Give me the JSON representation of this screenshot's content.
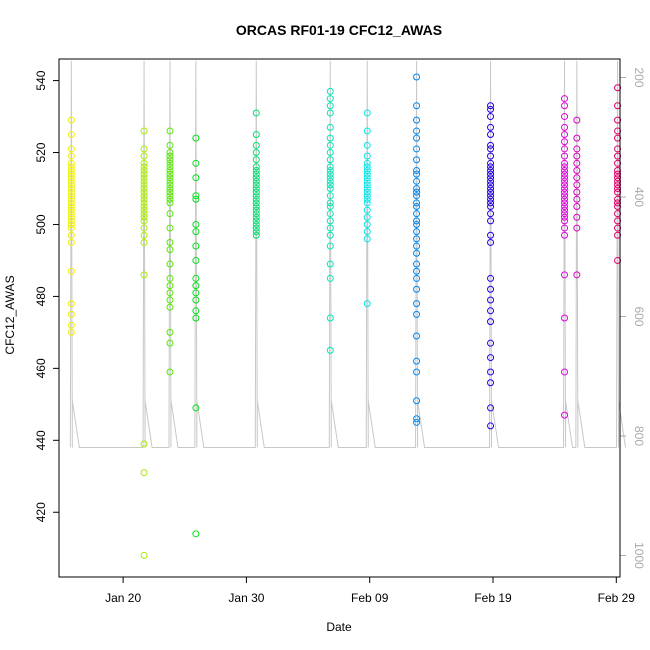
{
  "chart_data": {
    "type": "scatter",
    "title": "ORCAS RF01-19 CFC12_AWAS",
    "xlabel": "Date",
    "ylabel": "CFC12_AWAS",
    "x_unit": "day of 2016",
    "xlim": [
      14.8,
      60.3
    ],
    "ylim": [
      402,
      546
    ],
    "x_ticks": [
      {
        "value": 20,
        "label": "Jan 20"
      },
      {
        "value": 30,
        "label": "Jan 30"
      },
      {
        "value": 40,
        "label": "Feb 09"
      },
      {
        "value": 50,
        "label": "Feb 19"
      },
      {
        "value": 60,
        "label": "Feb 29"
      }
    ],
    "y_ticks": [
      420,
      440,
      460,
      480,
      500,
      520,
      540
    ],
    "right_axis": {
      "label": "",
      "ticks": [
        200,
        400,
        600,
        800,
        1000
      ],
      "lim": [
        1036,
        169
      ],
      "color": "#aaaaaa"
    },
    "flights": [
      {
        "x": 15.8,
        "color": "#f0f000",
        "values": [
          529,
          525,
          521,
          519,
          517,
          516,
          515,
          514,
          513,
          512,
          511,
          510,
          509,
          508,
          507,
          506,
          505,
          504,
          503,
          502,
          501,
          500,
          499,
          497,
          495,
          487,
          478,
          475,
          472,
          470
        ]
      },
      {
        "x": 21.7,
        "color": "#a8ec00",
        "values": [
          526,
          521,
          519,
          517,
          516,
          515,
          514,
          513,
          512,
          511,
          510,
          509,
          508,
          507,
          506,
          505,
          504,
          503,
          502,
          501,
          499,
          497,
          495,
          486,
          439,
          431,
          408
        ]
      },
      {
        "x": 23.8,
        "color": "#55e800",
        "values": [
          526,
          522,
          520,
          519,
          518,
          517,
          516,
          515,
          514,
          513,
          512,
          511,
          510,
          509,
          508,
          507,
          506,
          503,
          499,
          495,
          493,
          489,
          485,
          483,
          481,
          479,
          477,
          470,
          467,
          459
        ]
      },
      {
        "x": 25.9,
        "color": "#00e018",
        "values": [
          524,
          517,
          513,
          508,
          507,
          500,
          498,
          494,
          490,
          485,
          483,
          481,
          479,
          476,
          474,
          449,
          414
        ]
      },
      {
        "x": 30.8,
        "color": "#00e070",
        "values": [
          531,
          525,
          522,
          520,
          518,
          516,
          515,
          514,
          513,
          512,
          511,
          510,
          509,
          508,
          507,
          506,
          505,
          504,
          503,
          502,
          501,
          500,
          499,
          498,
          497
        ]
      },
      {
        "x": 36.8,
        "color": "#00e8b8",
        "values": [
          537,
          535,
          533,
          531,
          527,
          524,
          522,
          520,
          518,
          516,
          515,
          514,
          513,
          512,
          511,
          510,
          508,
          506,
          505,
          503,
          501,
          499,
          497,
          494,
          489,
          485,
          474,
          465
        ]
      },
      {
        "x": 39.8,
        "color": "#00e8e8",
        "values": [
          531,
          526,
          522,
          519,
          517,
          516,
          515,
          514,
          513,
          512,
          511,
          510,
          509,
          508,
          507,
          506,
          504,
          502,
          500,
          498,
          496,
          478
        ]
      },
      {
        "x": 43.8,
        "color": "#0088f0",
        "values": [
          541,
          533,
          529,
          526,
          524,
          521,
          518,
          515,
          514,
          512,
          510,
          509,
          508,
          506,
          505,
          503,
          501,
          500,
          498,
          496,
          494,
          492,
          489,
          487,
          485,
          482,
          478,
          475,
          469,
          462,
          459,
          451,
          446,
          445
        ]
      },
      {
        "x": 49.8,
        "color": "#2000e8",
        "values": [
          533,
          532,
          530,
          527,
          525,
          522,
          521,
          519,
          517,
          516,
          515,
          514,
          513,
          512,
          511,
          510,
          509,
          508,
          507,
          506,
          505,
          503,
          501,
          497,
          495,
          485,
          482,
          479,
          476,
          473,
          467,
          463,
          459,
          456,
          449,
          444
        ]
      },
      {
        "x": 55.8,
        "color": "#e000e0",
        "values": [
          535,
          533,
          530,
          527,
          525,
          523,
          521,
          519,
          517,
          516,
          515,
          514,
          513,
          512,
          511,
          510,
          509,
          508,
          507,
          506,
          505,
          504,
          503,
          502,
          501,
          499,
          497,
          486,
          474,
          459,
          447
        ]
      },
      {
        "x": 56.8,
        "color": "#d800c0",
        "values": [
          529,
          524,
          521,
          519,
          517,
          515,
          513,
          511,
          509,
          507,
          505,
          502,
          499,
          486
        ]
      },
      {
        "x": 60.1,
        "color": "#e0006a",
        "values": [
          538,
          533,
          529,
          526,
          524,
          521,
          519,
          517,
          515,
          514,
          513,
          512,
          511,
          510,
          509,
          507,
          506,
          505,
          503,
          501,
          499,
          497,
          490
        ]
      }
    ],
    "grid": false,
    "legend": "none"
  }
}
